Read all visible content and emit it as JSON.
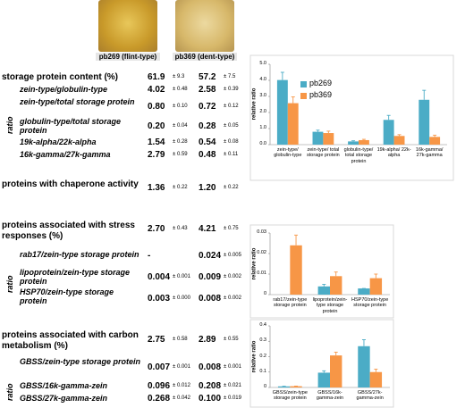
{
  "header": {
    "samples": [
      "pb269 (flint-type)",
      "pb369 (dent-type)"
    ]
  },
  "table": {
    "sections": [
      {
        "label": "storage protein content (%)",
        "values": [
          {
            "mean": "61.9",
            "sd": "± 9.3"
          },
          {
            "mean": "57.2",
            "sd": "± 7.5"
          }
        ],
        "group_label": "ratio",
        "rows": [
          {
            "label": "zein-type/globulin-type",
            "values": [
              {
                "mean": "4.02",
                "sd": "± 0.48"
              },
              {
                "mean": "2.58",
                "sd": "± 0.39"
              }
            ]
          },
          {
            "label": "zein-type/total storage protein",
            "values": [
              {
                "mean": "0.80",
                "sd": "± 0.10"
              },
              {
                "mean": "0.72",
                "sd": "± 0.12"
              }
            ]
          },
          {
            "label": "globulin-type/total storage protein",
            "values": [
              {
                "mean": "0.20",
                "sd": "± 0.04"
              },
              {
                "mean": "0.28",
                "sd": "± 0.05"
              }
            ]
          },
          {
            "label": "19k-alpha/22k-alpha",
            "values": [
              {
                "mean": "1.54",
                "sd": "± 0.28"
              },
              {
                "mean": "0.54",
                "sd": "± 0.08"
              }
            ]
          },
          {
            "label": "16k-gamma/27k-gamma",
            "values": [
              {
                "mean": "2.79",
                "sd": "± 0.59"
              },
              {
                "mean": "0.48",
                "sd": "± 0.11"
              }
            ]
          }
        ]
      },
      {
        "label": "proteins with chaperone activity",
        "values": [
          {
            "mean": "1.36",
            "sd": "± 0.22"
          },
          {
            "mean": "1.20",
            "sd": "± 0.22"
          }
        ],
        "rows": []
      },
      {
        "label": "proteins associated with stress responses (%)",
        "values": [
          {
            "mean": "2.70",
            "sd": "± 0.43"
          },
          {
            "mean": "4.21",
            "sd": "± 0.75"
          }
        ],
        "group_label": "ratio",
        "rows": [
          {
            "label": "rab17/zein-type storage protein",
            "values": [
              {
                "mean": "-"
              },
              {
                "mean": "0.024",
                "sd": "± 0.005"
              }
            ]
          },
          {
            "label": "lipoprotein/zein-type storage protein",
            "values": [
              {
                "mean": "0.004",
                "sd": "± 0.001"
              },
              {
                "mean": "0.009",
                "sd": "± 0.002"
              }
            ]
          },
          {
            "label": "HSP70/zein-type storage protein",
            "values": [
              {
                "mean": "0.003",
                "sd": "± 0.000"
              },
              {
                "mean": "0.008",
                "sd": "± 0.002"
              }
            ]
          }
        ]
      },
      {
        "label": "proteins associated with carbon metabolism (%)",
        "values": [
          {
            "mean": "2.75",
            "sd": "± 0.58"
          },
          {
            "mean": "2.89",
            "sd": "± 0.55"
          }
        ],
        "group_label": "ratio",
        "rows": [
          {
            "label": "GBSS/zein-type storage protein",
            "values": [
              {
                "mean": "0.007",
                "sd": "± 0.001"
              },
              {
                "mean": "0.008",
                "sd": "± 0.001"
              }
            ]
          },
          {
            "label": "GBSS/16k-gamma-zein",
            "values": [
              {
                "mean": "0.096",
                "sd": "± 0.012"
              },
              {
                "mean": "0.208",
                "sd": "± 0.021"
              }
            ]
          },
          {
            "label": "GBSS/27k-gamma-zein",
            "values": [
              {
                "mean": "0.268",
                "sd": "± 0.042"
              },
              {
                "mean": "0.100",
                "sd": "± 0.019"
              }
            ]
          }
        ]
      }
    ]
  },
  "chart_data": [
    {
      "type": "bar",
      "ylabel": "relative ratio",
      "legend": "upper left",
      "categories": [
        "zein-type/ globulin-type",
        "zein-type/ total storage protein",
        "globulin-type/ total storage protein",
        "19k-alpha/ 22k-alpha",
        "16k-gamma/ 27k-gamma"
      ],
      "series": [
        {
          "name": "pb269",
          "color": "#4bacc6",
          "values": [
            4.02,
            0.8,
            0.2,
            1.54,
            2.79
          ],
          "errors": [
            0.48,
            0.1,
            0.04,
            0.28,
            0.59
          ]
        },
        {
          "name": "pb369",
          "color": "#f79646",
          "values": [
            2.58,
            0.72,
            0.28,
            0.54,
            0.48
          ],
          "errors": [
            0.39,
            0.12,
            0.05,
            0.08,
            0.11
          ]
        }
      ],
      "ylim": [
        0,
        5
      ],
      "yticks": [
        {
          "value": 0,
          "label": "0.0"
        },
        {
          "value": 1,
          "label": "1.0"
        },
        {
          "value": 2,
          "label": "2.0"
        },
        {
          "value": 3,
          "label": "3.0"
        },
        {
          "value": 4,
          "label": "4.0"
        },
        {
          "value": 5,
          "label": "5.0"
        }
      ]
    },
    {
      "type": "bar",
      "ylabel": "relative ratio",
      "categories": [
        "rab17/zein-type storage protein",
        "lipoprotein/zein-type storage protein",
        "HSP70/zein-type storage protein"
      ],
      "series": [
        {
          "color": "#4bacc6",
          "values": [
            null,
            0.004,
            0.003
          ],
          "errors": [
            null,
            0.001,
            0.0
          ]
        },
        {
          "color": "#f79646",
          "values": [
            0.024,
            0.009,
            0.008
          ],
          "errors": [
            0.005,
            0.002,
            0.002
          ]
        }
      ],
      "ylim": [
        0,
        0.03
      ],
      "yticks": [
        0,
        0.01,
        0.02,
        0.03
      ]
    },
    {
      "type": "bar",
      "ylabel": "relative ratio",
      "categories": [
        "GBSS/zein-type storage protein",
        "GBSS/16k-gamma-zein",
        "GBSS/27k-gamma-zein"
      ],
      "series": [
        {
          "color": "#4bacc6",
          "values": [
            0.007,
            0.096,
            0.268
          ],
          "errors": [
            0.001,
            0.012,
            0.042
          ]
        },
        {
          "color": "#f79646",
          "values": [
            0.008,
            0.208,
            0.1
          ],
          "errors": [
            0.001,
            0.021,
            0.019
          ]
        }
      ],
      "ylim": [
        0,
        0.4
      ],
      "yticks": [
        0,
        0.1,
        0.2,
        0.3,
        0.4
      ]
    }
  ]
}
